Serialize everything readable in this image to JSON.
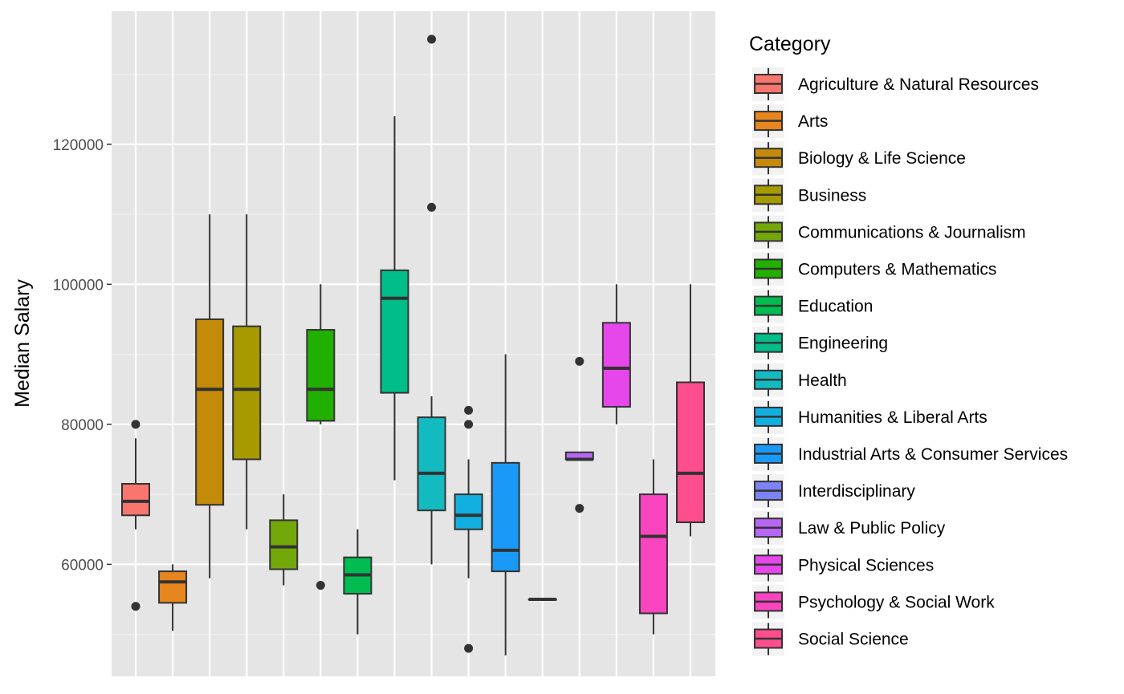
{
  "chart_data": {
    "type": "boxplot",
    "ylabel": "Median Salary",
    "xlabel": "",
    "ylim": [
      44000,
      139000
    ],
    "yticks": [
      60000,
      80000,
      100000,
      120000
    ],
    "grid": true,
    "legend": {
      "title": "Category",
      "position": "right"
    },
    "series": [
      {
        "name": "Agriculture & Natural Resources",
        "color": "#F8766D",
        "whisker_low": 65000,
        "q1": 67000,
        "median": 69000,
        "q3": 71500,
        "whisker_high": 78000,
        "outliers": [
          54000,
          80000
        ]
      },
      {
        "name": "Arts",
        "color": "#E7851E",
        "whisker_low": 50500,
        "q1": 54500,
        "median": 57500,
        "q3": 59000,
        "whisker_high": 60000,
        "outliers": []
      },
      {
        "name": "Biology & Life Science",
        "color": "#D09400",
        "whisker_low": 58000,
        "q1": 68500,
        "median": 85000,
        "q3": 95000,
        "whisker_high": 110000,
        "outliers": []
      },
      {
        "name": "Business",
        "color": "#B2A100",
        "whisker_low": 65000,
        "q1": 75000,
        "median": 85000,
        "q3": 94000,
        "whisker_high": 110000,
        "outliers": []
      },
      {
        "name": "Communications & Journalism",
        "color": "#89AC00",
        "whisker_low": 57000,
        "q1": 59300,
        "median": 62500,
        "q3": 66300,
        "whisker_high": 70000,
        "outliers": []
      },
      {
        "name": "Computers & Mathematics",
        "color": "#45B500",
        "whisker_low": 80000,
        "q1": 80500,
        "median": 85000,
        "q3": 93500,
        "whisker_high": 100000,
        "outliers": [
          57000
        ]
      },
      {
        "name": "Education",
        "color": "#00BC51",
        "whisker_low": 50000,
        "q1": 55800,
        "median": 58500,
        "q3": 61000,
        "whisker_high": 65000,
        "outliers": []
      },
      {
        "name": "Engineering",
        "color": "#00C087",
        "whisker_low": 72000,
        "q1": 84500,
        "median": 98000,
        "q3": 102000,
        "whisker_high": 124000,
        "outliers": []
      },
      {
        "name": "Health",
        "color": "#00C0B2",
        "whisker_low": 60000,
        "q1": 67700,
        "median": 73000,
        "q3": 81000,
        "whisker_high": 84000,
        "outliers": [
          111000,
          135000
        ]
      },
      {
        "name": "Humanities & Liberal Arts",
        "color": "#00BCD6",
        "whisker_low": 58000,
        "q1": 65000,
        "median": 67000,
        "q3": 70000,
        "whisker_high": 75000,
        "outliers": [
          48000,
          80000,
          82000
        ]
      },
      {
        "name": "Industrial Arts & Consumer Services",
        "color": "#00B3F2",
        "whisker_low": 47000,
        "q1": 59000,
        "median": 62000,
        "q3": 74500,
        "whisker_high": 90000,
        "outliers": []
      },
      {
        "name": "Interdisciplinary",
        "color": "#29A3FF",
        "whisker_low": 55000,
        "q1": 55000,
        "median": 55000,
        "q3": 55000,
        "whisker_high": 55000,
        "outliers": []
      },
      {
        "name": "Law & Public Policy",
        "color": "#9C8DFF",
        "whisker_low": 75000,
        "q1": 75000,
        "median": 75000,
        "q3": 76000,
        "whisker_high": 76000,
        "outliers": [
          68000,
          89000
        ]
      },
      {
        "name": "Physical Sciences",
        "color": "#D277FF",
        "whisker_low": 80000,
        "q1": 82500,
        "median": 88000,
        "q3": 94500,
        "whisker_high": 100000,
        "outliers": []
      },
      {
        "name": "Psychology & Social Work",
        "color": "#F166E8",
        "whisker_low": 50000,
        "q1": 53000,
        "median": 64000,
        "q3": 70000,
        "whisker_high": 75000,
        "outliers": []
      },
      {
        "name": "Social Science",
        "color": "#FF61C7",
        "whisker_low": 64000,
        "q1": 66000,
        "median": 73000,
        "q3": 86000,
        "whisker_high": 100000,
        "outliers": []
      }
    ]
  },
  "legend_colors": [
    "#F8766D",
    "#E7851E",
    "#D09400",
    "#B2A100",
    "#89AC00",
    "#45B500",
    "#00BC51",
    "#00C087",
    "#00C0B2",
    "#00BCD6",
    "#00B3F2",
    "#29A3FF",
    "#9C8DFF",
    "#D277FF",
    "#F166E8",
    "#FF61C7"
  ],
  "display_colors": [
    "#F8766D",
    "#E7851E",
    "#C48A0A",
    "#A69A00",
    "#72A80A",
    "#22B000",
    "#00BC51",
    "#00BD8A",
    "#13BAC0",
    "#11B0E0",
    "#1A99F7",
    "#7B83F5",
    "#B866F5",
    "#E547EA",
    "#FA45C1",
    "#FE4E8C"
  ]
}
